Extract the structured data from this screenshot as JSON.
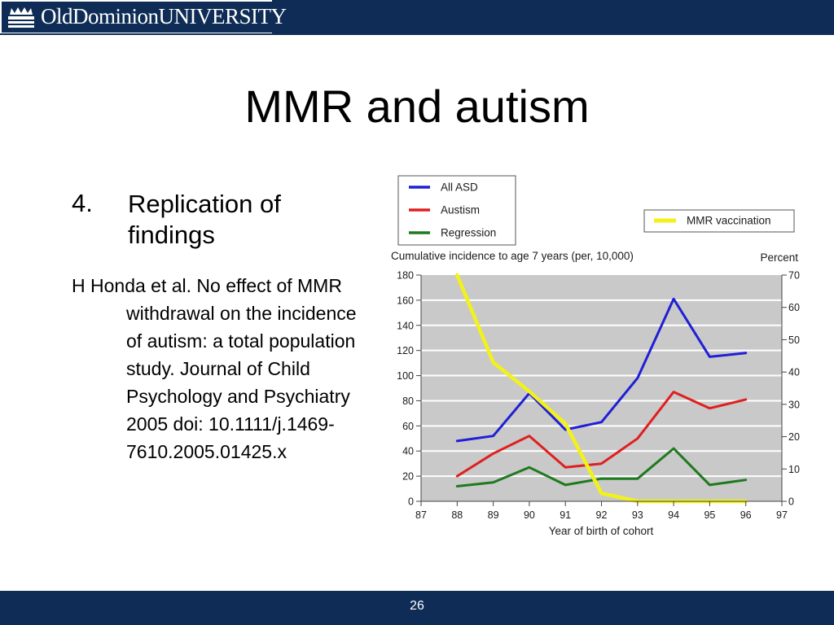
{
  "header": {
    "logo_text": "OldDominionUNIVERSITY",
    "logo_icon": "crown-icon"
  },
  "slide": {
    "title": "MMR and autism",
    "bullet_number": "4.",
    "bullet_text": "Replication of findings",
    "citation": "H Honda et al. No effect of MMR withdrawal on the incidence of autism: a total population study. Journal of Child Psychology and Psychiatry 2005 doi: 10.1111/j.1469-7610.2005.01425.x"
  },
  "footer": {
    "page_number": "26"
  },
  "chart_data": {
    "type": "line",
    "title": "",
    "left_axis_title": "Cumulative incidence to age 7 years (per, 10,000)",
    "right_axis_title": "Percent",
    "xlabel": "Year of birth of cohort",
    "xlim": [
      87,
      97
    ],
    "x_ticks": [
      "87",
      "88",
      "89",
      "90",
      "91",
      "92",
      "93",
      "94",
      "95",
      "96",
      "97"
    ],
    "ylim_left": [
      0,
      180
    ],
    "y_ticks_left": [
      "0",
      "20",
      "40",
      "60",
      "80",
      "100",
      "120",
      "140",
      "160",
      "180"
    ],
    "ylim_right": [
      0,
      70
    ],
    "y_ticks_right": [
      "0",
      "10",
      "20",
      "30",
      "40",
      "50",
      "60",
      "70"
    ],
    "grid": true,
    "plot_background": "#c9c9c9",
    "legend_placement": "top-left",
    "series": [
      {
        "name": "All ASD",
        "axis": "left",
        "color": "#1f1fd6",
        "x": [
          88,
          89,
          90,
          91,
          92,
          93,
          94,
          95,
          96
        ],
        "values": [
          48,
          52,
          86,
          57,
          63,
          98,
          161,
          115,
          118
        ]
      },
      {
        "name": "Austism",
        "axis": "left",
        "color": "#e01f1f",
        "x": [
          88,
          89,
          90,
          91,
          92,
          93,
          94,
          95,
          96
        ],
        "values": [
          20,
          38,
          52,
          27,
          30,
          50,
          87,
          74,
          81
        ]
      },
      {
        "name": "Regression",
        "axis": "left",
        "color": "#1e7a1e",
        "x": [
          88,
          89,
          90,
          91,
          92,
          93,
          94,
          95,
          96
        ],
        "values": [
          12,
          15,
          27,
          13,
          18,
          18,
          42,
          13,
          17
        ]
      },
      {
        "name": "MMR vaccination",
        "axis": "right",
        "color": "#f2f21a",
        "x": [
          88,
          89,
          90,
          91,
          92,
          93,
          94,
          95,
          96
        ],
        "values": [
          70,
          43,
          34,
          24,
          2.5,
          0,
          0,
          0,
          0
        ]
      }
    ]
  }
}
